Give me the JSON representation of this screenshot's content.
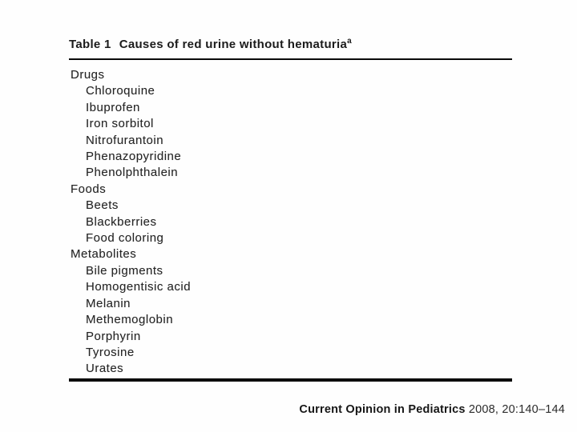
{
  "table": {
    "label": "Table 1",
    "title": "Causes of red urine without hematuria",
    "footnote_marker": "a",
    "sections": [
      {
        "header": "Drugs",
        "items": [
          "Chloroquine",
          "Ibuprofen",
          "Iron sorbitol",
          "Nitrofurantoin",
          "Phenazopyridine",
          "Phenolphthalein"
        ]
      },
      {
        "header": "Foods",
        "items": [
          "Beets",
          "Blackberries",
          "Food coloring"
        ]
      },
      {
        "header": "Metabolites",
        "items": [
          "Bile pigments",
          "Homogentisic acid",
          "Melanin",
          "Methemoglobin",
          "Porphyrin",
          "Tyrosine",
          "Urates"
        ]
      }
    ]
  },
  "footer": {
    "journal": "Current Opinion in Pediatrics",
    "citation": "2008, 20:140–144"
  },
  "colors": {
    "text": "#262626",
    "title_text": "#1b1b1b",
    "rule": "#050505",
    "background": "#ffffff"
  }
}
